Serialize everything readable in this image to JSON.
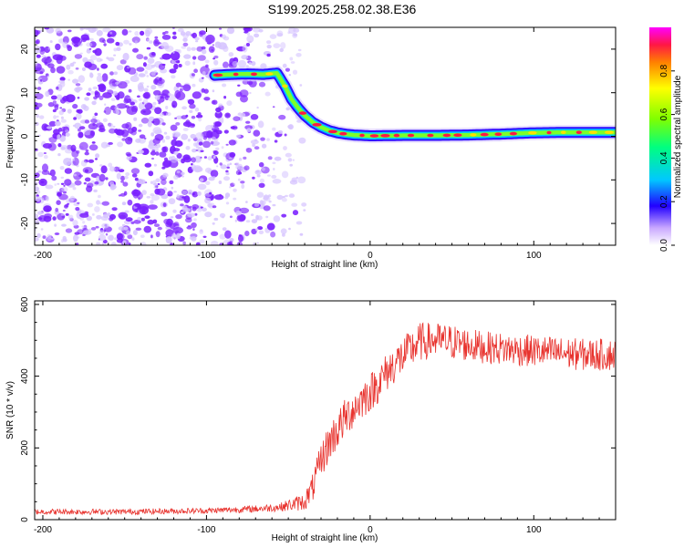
{
  "title": "S199.2025.258.02.38.E36",
  "colors": {
    "snr_line": "#e8332e",
    "ridge_core": "#ff1744",
    "ridge_mid": "#7cff2a",
    "ridge_edge": "#00c8ff",
    "ridge_outer": "#2200ff",
    "noise_strong": "#7a1fff",
    "noise_weak": "#d6c4ff"
  },
  "chart_data": [
    {
      "type": "heatmap",
      "title": "S199.2025.258.02.38.E36",
      "xlabel": "Height of straight line (km)",
      "ylabel": "Frequency (Hz)",
      "xlim": [
        -205,
        150
      ],
      "ylim": [
        -25,
        25
      ],
      "x_ticks": [
        -200,
        -100,
        0,
        100
      ],
      "y_ticks": [
        20,
        10,
        0,
        -10,
        -20
      ],
      "noise_region_x": [
        -205,
        -50
      ],
      "ridge": {
        "x": [
          -95,
          -85,
          -75,
          -65,
          -57,
          -52,
          -48,
          -44,
          -40,
          -35,
          -30,
          -25,
          -20,
          -15,
          -10,
          0,
          20,
          40,
          60,
          80,
          100,
          120,
          150
        ],
        "frequency": [
          14,
          14.2,
          14.3,
          14.2,
          14.5,
          11.5,
          8.5,
          6.5,
          4.8,
          3.2,
          2.1,
          1.3,
          0.8,
          0.5,
          0.3,
          0.1,
          0.2,
          0.2,
          0.3,
          0.5,
          0.8,
          0.9,
          0.9
        ]
      },
      "colorbar": {
        "label": "Normalized spectral amplitude",
        "range": [
          0,
          1
        ],
        "ticks": [
          "0.0",
          "0.2",
          "0.4",
          "0.6",
          "0.8"
        ]
      }
    },
    {
      "type": "line",
      "xlabel": "Height of straight line (km)",
      "ylabel": "SNR (10 * v/v)",
      "xlim": [
        -205,
        150
      ],
      "ylim": [
        0,
        610
      ],
      "x_ticks": [
        -200,
        -100,
        0,
        100
      ],
      "y_ticks": [
        0,
        200,
        400,
        600
      ],
      "series": [
        {
          "name": "SNR",
          "envelope_x": [
            -205,
            -150,
            -100,
            -70,
            -55,
            -40,
            -35,
            -30,
            -25,
            -20,
            -15,
            -10,
            -5,
            0,
            5,
            10,
            15,
            20,
            25,
            30,
            40,
            50,
            70,
            100,
            130,
            150
          ],
          "envelope_y": [
            22,
            22,
            25,
            30,
            35,
            50,
            90,
            165,
            215,
            250,
            285,
            310,
            335,
            355,
            380,
            410,
            435,
            455,
            475,
            495,
            500,
            495,
            480,
            470,
            460,
            460
          ],
          "noise_amplitude": [
            8,
            8,
            8,
            10,
            12,
            25,
            40,
            50,
            55,
            55,
            55,
            55,
            55,
            55,
            55,
            55,
            55,
            55,
            55,
            55,
            50,
            50,
            45,
            45,
            45,
            45
          ]
        }
      ]
    }
  ]
}
